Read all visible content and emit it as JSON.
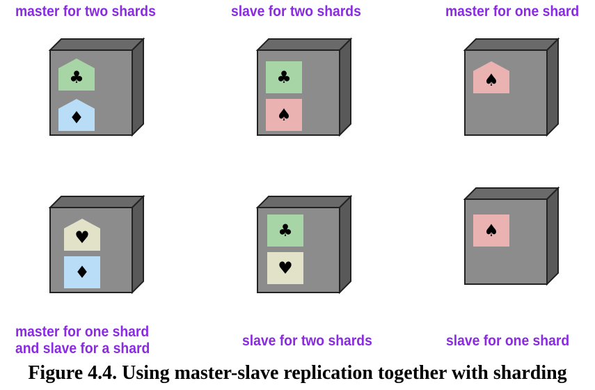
{
  "labels": {
    "top_left": "master for two shards",
    "top_middle": "slave for two shards",
    "top_right": "master for one shard",
    "bottom_left_line1": "master for one shard",
    "bottom_left_line2": "and slave for a shard",
    "bottom_middle": "slave for two shards",
    "bottom_right": "slave for one shard"
  },
  "caption": "Figure 4.4. Using master-slave replication together with sharding",
  "colors": {
    "label": "#8a2be2",
    "box_front": "#8c8c8c",
    "box_top": "#6a6a6a",
    "box_side": "#595959",
    "club_shard": "#a8d5a6",
    "diamond_shard": "#b9dcf7",
    "spade_shard": "#eab3b2",
    "heart_shard": "#e2e2c8"
  },
  "suits": {
    "club": "♣",
    "diamond": "♦",
    "spade": "♠",
    "heart": "♥"
  },
  "nodes": [
    {
      "name": "node-top-left",
      "shards": [
        {
          "suit": "club",
          "role": "master"
        },
        {
          "suit": "diamond",
          "role": "master"
        }
      ]
    },
    {
      "name": "node-top-middle",
      "shards": [
        {
          "suit": "club",
          "role": "slave"
        },
        {
          "suit": "spade",
          "role": "slave"
        }
      ]
    },
    {
      "name": "node-top-right",
      "shards": [
        {
          "suit": "spade",
          "role": "master"
        }
      ]
    },
    {
      "name": "node-bottom-left",
      "shards": [
        {
          "suit": "heart",
          "role": "master"
        },
        {
          "suit": "diamond",
          "role": "slave"
        }
      ]
    },
    {
      "name": "node-bottom-middle",
      "shards": [
        {
          "suit": "club",
          "role": "slave"
        },
        {
          "suit": "heart",
          "role": "slave"
        }
      ]
    },
    {
      "name": "node-bottom-right",
      "shards": [
        {
          "suit": "spade",
          "role": "slave"
        }
      ]
    }
  ]
}
